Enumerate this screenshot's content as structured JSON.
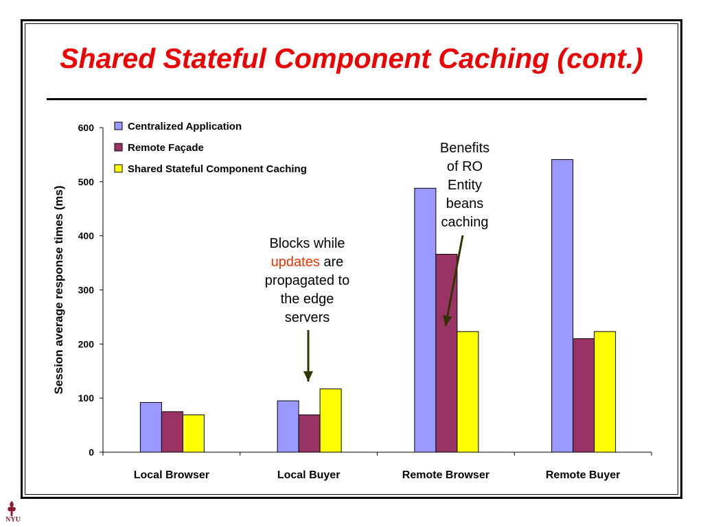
{
  "slide": {
    "title": "Shared Stateful Component Caching (cont.)",
    "logo_text": "NYU"
  },
  "annotations": {
    "blocks": {
      "line1": "Blocks while",
      "highlight": "updates",
      "line2_rest": " are",
      "line3": "propagated to",
      "line4": "the edge",
      "line5": "servers"
    },
    "benefits": {
      "line1": "Benefits",
      "line2": "of RO",
      "line3": "Entity",
      "line4": "beans",
      "line5": "caching"
    }
  },
  "colors": {
    "title": "#ee0000",
    "highlight": "#ee3300",
    "arrow": "#333300"
  },
  "chart_data": {
    "type": "bar",
    "title": "",
    "xlabel": "",
    "ylabel": "Session average response times (ms)",
    "ylim": [
      0,
      600
    ],
    "yticks": [
      0,
      100,
      200,
      300,
      400,
      500,
      600
    ],
    "grid": false,
    "legend_position": "top-left",
    "categories": [
      "Local Browser",
      "Local Buyer",
      "Remote Browser",
      "Remote Buyer"
    ],
    "series": [
      {
        "name": "Centralized Application",
        "color": "#9999ff",
        "values": [
          92,
          95,
          488,
          541
        ]
      },
      {
        "name": "Remote Façade",
        "color": "#993366",
        "values": [
          75,
          69,
          366,
          210
        ]
      },
      {
        "name": "Shared Stateful Component Caching",
        "color": "#ffff00",
        "values": [
          69,
          117,
          223,
          223
        ]
      }
    ]
  }
}
